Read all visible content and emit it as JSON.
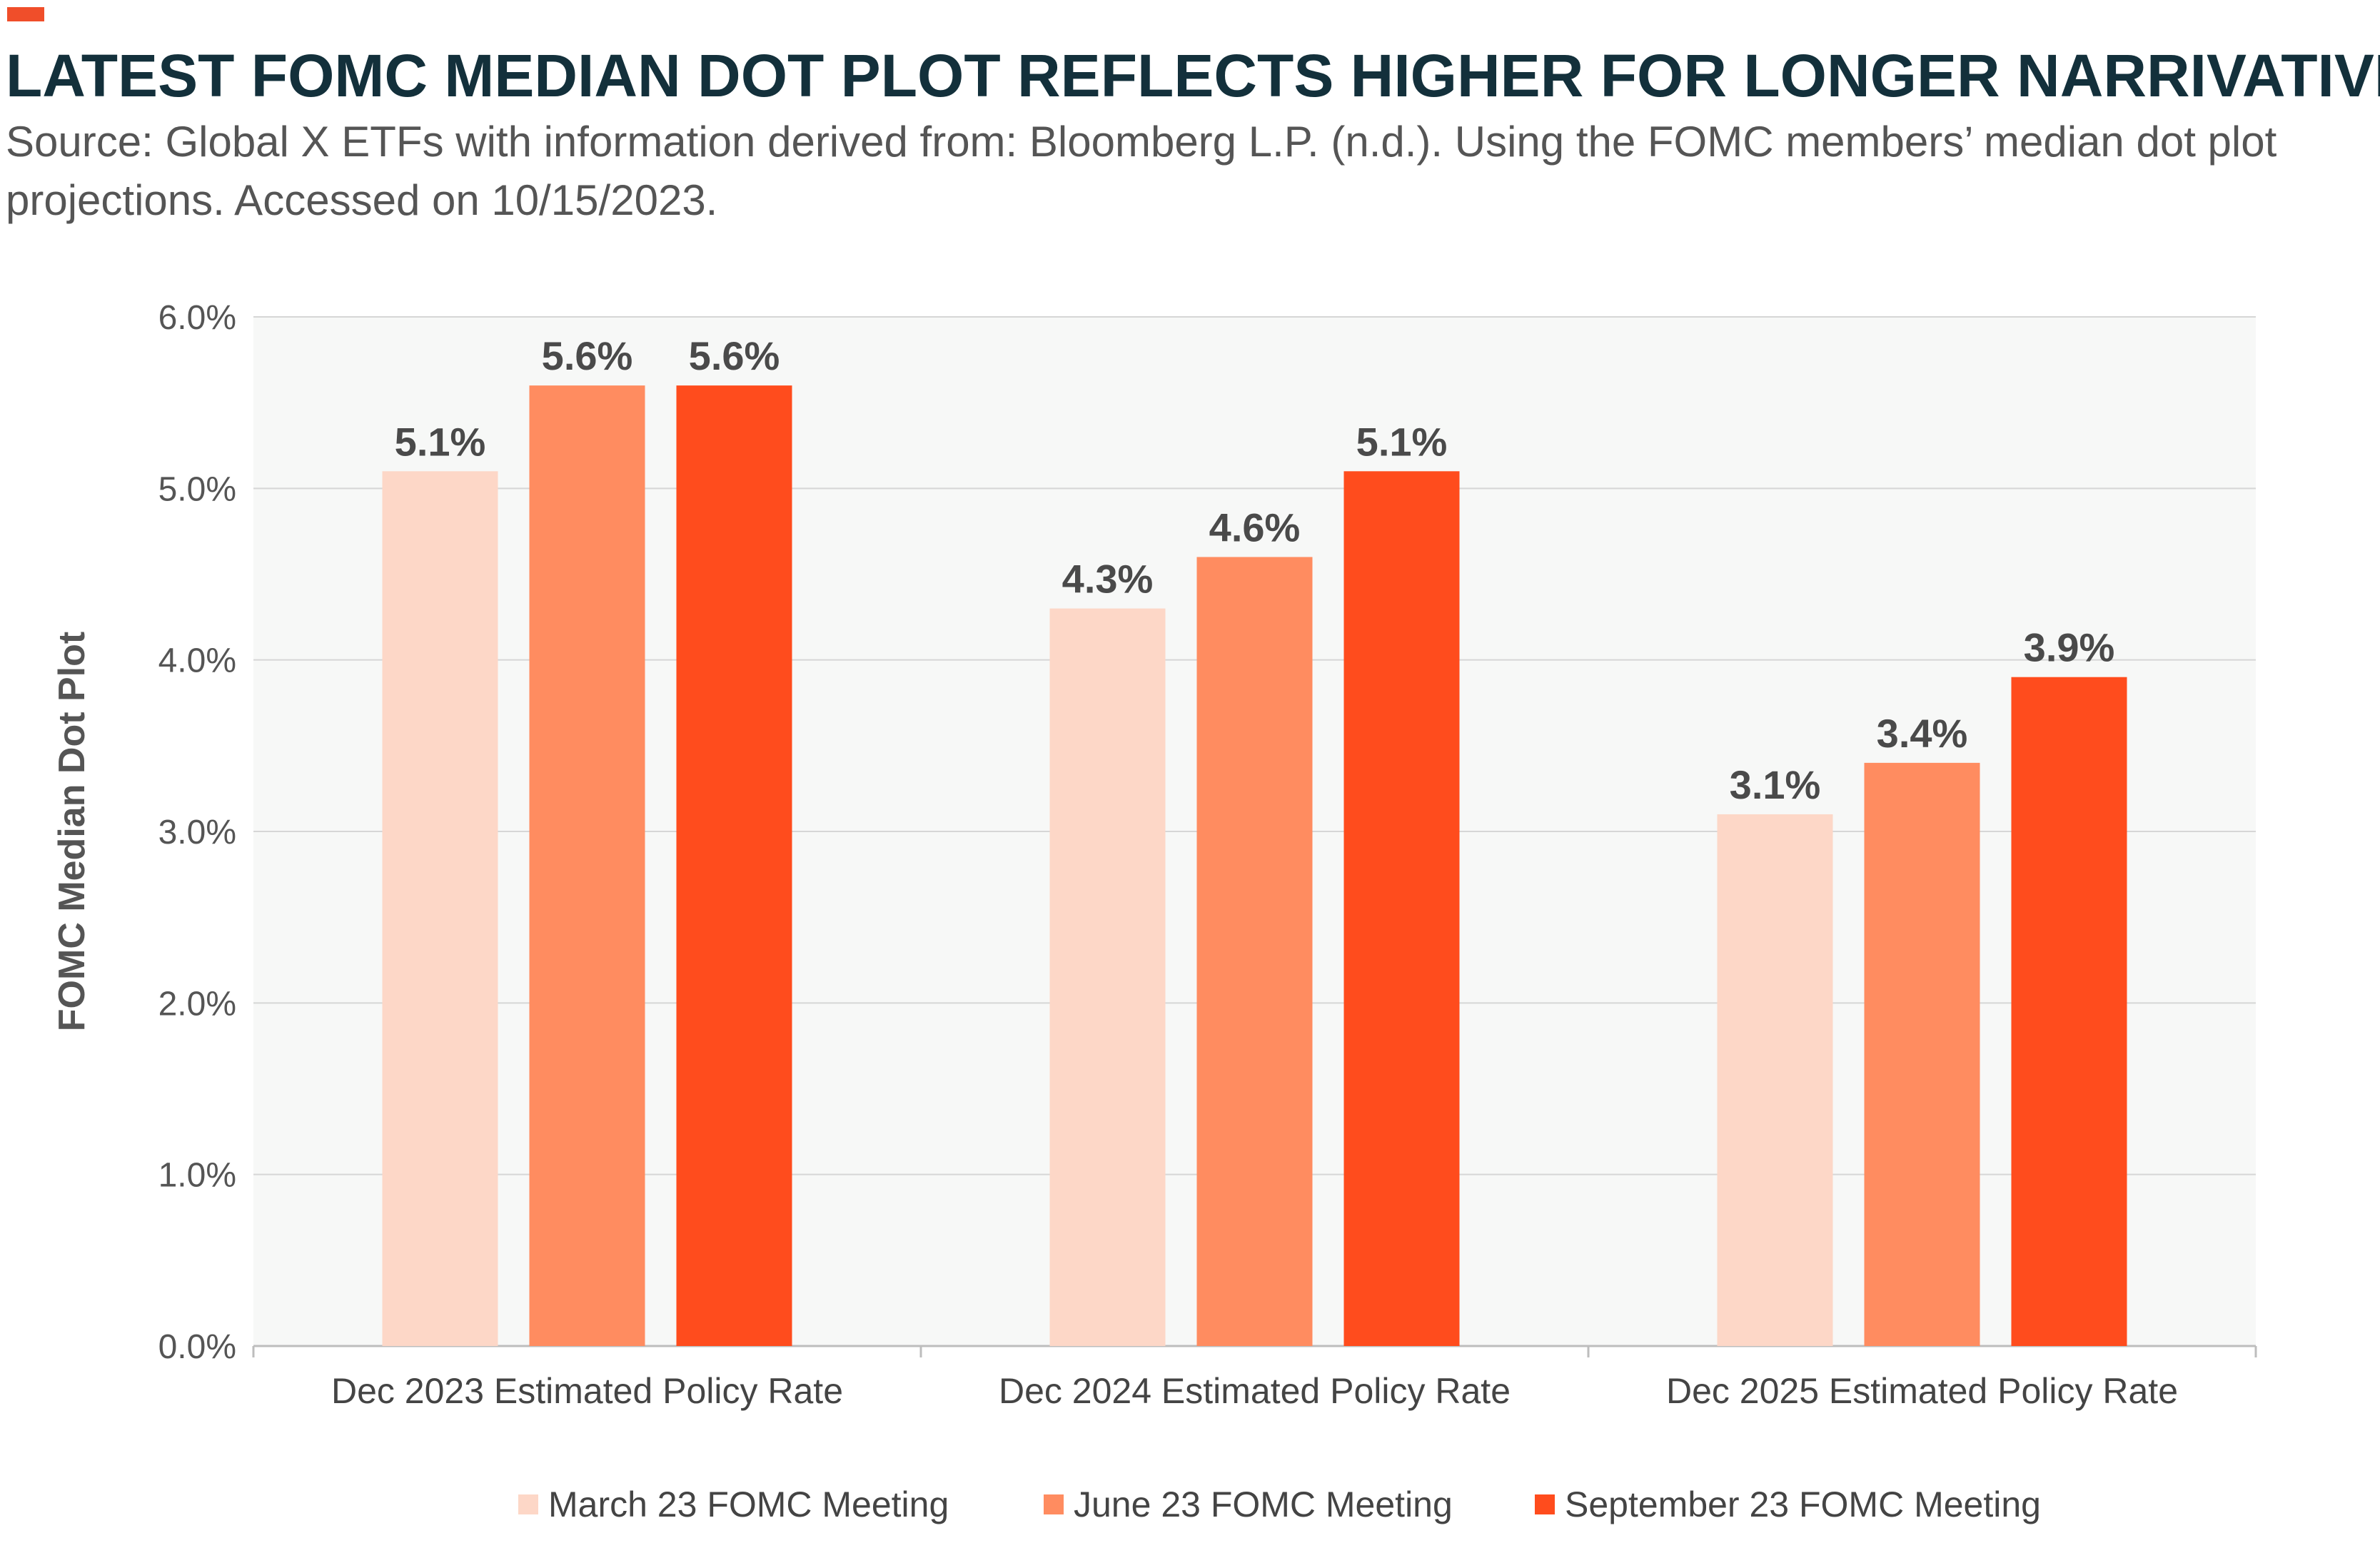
{
  "header": {
    "title": "LATEST FOMC MEDIAN DOT PLOT REFLECTS HIGHER FOR LONGER NARRIVATIVE",
    "subtitle": "Source: Global X ETFs with information derived from: Bloomberg L.P. (n.d.). Using the FOMC members’ median dot plot projections. Accessed on 10/15/2023.",
    "accent_color": "#f04e2a"
  },
  "chart_data": {
    "type": "bar",
    "title": "",
    "xlabel": "",
    "ylabel": "FOMC Median Dot Plot",
    "ylim": [
      0,
      6
    ],
    "y_ticks": [
      "0.0%",
      "1.0%",
      "2.0%",
      "3.0%",
      "4.0%",
      "5.0%",
      "6.0%"
    ],
    "grid": true,
    "plot_background": "#f7f8f7",
    "legend_position": "bottom",
    "categories": [
      "Dec 2023 Estimated Policy Rate",
      "Dec 2024 Estimated Policy Rate",
      "Dec 2025 Estimated Policy Rate"
    ],
    "series": [
      {
        "name": "March 23 FOMC Meeting",
        "color": "#fdd7c7",
        "values": [
          5.1,
          4.3,
          3.1
        ],
        "labels": [
          "5.1%",
          "4.3%",
          "3.1%"
        ]
      },
      {
        "name": "June 23 FOMC Meeting",
        "color": "#ff8c60",
        "values": [
          5.6,
          4.6,
          3.4
        ],
        "labels": [
          "5.6%",
          "4.6%",
          "3.4%"
        ]
      },
      {
        "name": "September 23 FOMC Meeting",
        "color": "#ff4c1d",
        "values": [
          5.6,
          5.1,
          3.9
        ],
        "labels": [
          "5.6%",
          "5.1%",
          "3.9%"
        ]
      }
    ]
  }
}
